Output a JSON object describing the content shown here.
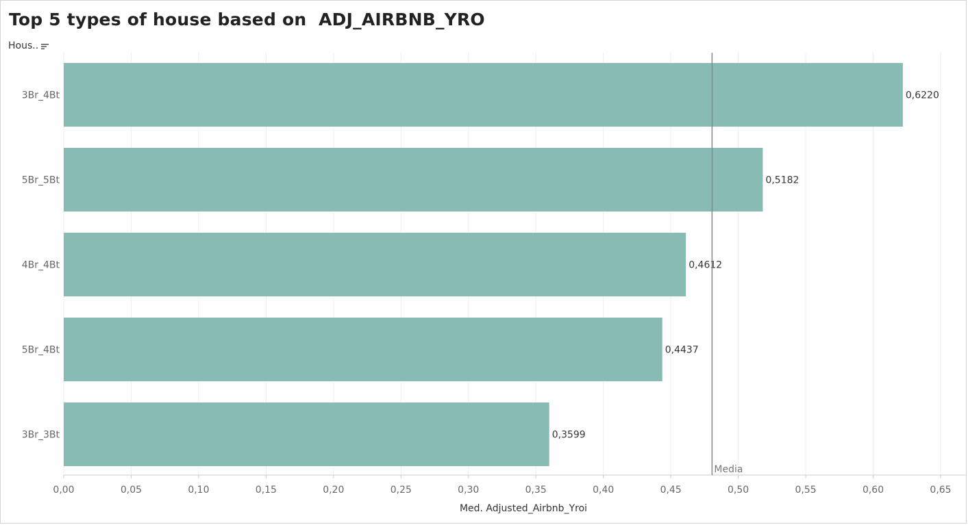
{
  "header": {
    "title": "Top 5 types of house based on  ADJ_AIRBNB_YRO",
    "field_label": "Hous.."
  },
  "colors": {
    "bar": "#87bbb3",
    "grid": "#eeeeee",
    "reference_line": "#888888",
    "axis_line": "#cccccc"
  },
  "chart_data": {
    "type": "bar",
    "orientation": "horizontal",
    "title": "Top 5 types of house based on  ADJ_AIRBNB_YRO",
    "ylabel": "Hous..",
    "xlabel": "Med. Adjusted_Airbnb_Yroi",
    "categories": [
      "3Br_4Bt",
      "5Br_5Bt",
      "4Br_4Bt",
      "5Br_4Bt",
      "3Br_3Bt"
    ],
    "values": [
      0.622,
      0.5182,
      0.4612,
      0.4437,
      0.3599
    ],
    "value_labels": [
      "0,6220",
      "0,5182",
      "0,4612",
      "0,4437",
      "0,3599"
    ],
    "xlim": [
      0,
      0.65
    ],
    "xticks": [
      0,
      0.05,
      0.1,
      0.15,
      0.2,
      0.25,
      0.3,
      0.35,
      0.4,
      0.45,
      0.5,
      0.55,
      0.6,
      0.65
    ],
    "xtick_labels": [
      "0,00",
      "0,05",
      "0,10",
      "0,15",
      "0,20",
      "0,25",
      "0,30",
      "0,35",
      "0,40",
      "0,45",
      "0,50",
      "0,55",
      "0,60",
      "0,65"
    ],
    "reference_line": {
      "label": "Media",
      "value": 0.4806
    },
    "grid": true,
    "legend": "none"
  }
}
